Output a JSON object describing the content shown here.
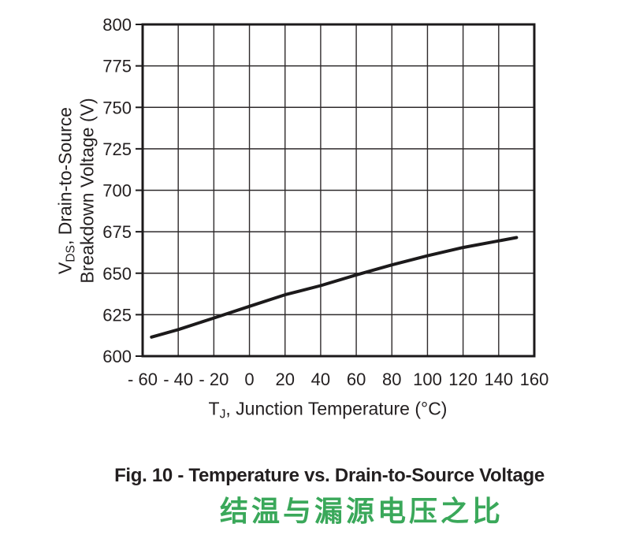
{
  "colors": {
    "ink": "#231f20",
    "grid_line": "#2e2a2b",
    "axis_border": "#1c1a1b",
    "curve": "#1c1a1b",
    "subtitle_green": "#3aa85a",
    "background": "#ffffff"
  },
  "chart_data": {
    "type": "line",
    "title": "Fig. 10 - Temperature vs. Drain-to-Source Voltage",
    "subtitle_cn": "结温与漏源电压之比",
    "xlabel": {
      "prefix": "T",
      "sub": "J",
      "rest": ", Junction Temperature (°C)"
    },
    "ylabel_line1": {
      "prefix": "V",
      "sub": "DS",
      "rest": ", Drain-to-Source"
    },
    "ylabel_line2": "Breakdown Voltage (V)",
    "xlim": [
      -60,
      160
    ],
    "ylim": [
      600,
      800
    ],
    "x_tick_values": [
      -60,
      -40,
      -20,
      0,
      20,
      40,
      60,
      80,
      100,
      120,
      140,
      160
    ],
    "x_tick_labels": [
      "- 60",
      "- 40",
      "- 20",
      "0",
      "20",
      "40",
      "60",
      "80",
      "100",
      "120",
      "140",
      "160"
    ],
    "y_tick_values": [
      600,
      625,
      650,
      675,
      700,
      725,
      750,
      775,
      800
    ],
    "y_tick_labels": [
      "600",
      "625",
      "650",
      "675",
      "700",
      "725",
      "750",
      "775",
      "800"
    ],
    "grid": true,
    "legend": null,
    "series": [
      {
        "name": "drain-to-source-breakdown-voltage",
        "points": [
          [
            -55,
            611.5
          ],
          [
            -40,
            616
          ],
          [
            -20,
            623
          ],
          [
            0,
            630
          ],
          [
            20,
            637
          ],
          [
            40,
            642.5
          ],
          [
            60,
            649
          ],
          [
            80,
            655
          ],
          [
            100,
            660.5
          ],
          [
            120,
            665.5
          ],
          [
            140,
            669.5
          ],
          [
            150,
            671.5
          ]
        ]
      }
    ]
  }
}
